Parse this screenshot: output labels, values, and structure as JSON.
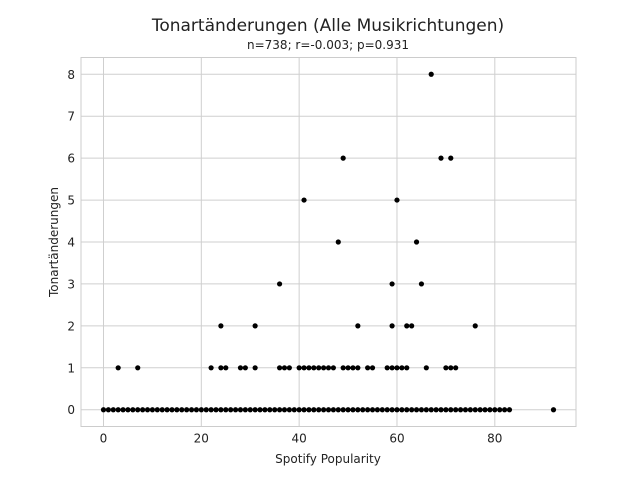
{
  "chart_data": {
    "type": "scatter",
    "title": "Tonartänderungen (Alle Musikrichtungen)",
    "subtitle": "n=738; r=-0.003; p=0.931",
    "xlabel": "Spotify Popularity",
    "ylabel": "Tonartänderungen",
    "xlim": [
      -4.6,
      96.6
    ],
    "ylim": [
      -0.4,
      8.4
    ],
    "xticks": [
      0,
      20,
      40,
      60,
      80
    ],
    "yticks": [
      0,
      1,
      2,
      3,
      4,
      5,
      6,
      7,
      8
    ],
    "grid": true,
    "marker_color": "#000000",
    "points": [
      {
        "x": 3,
        "y": 1
      },
      {
        "x": 7,
        "y": 1
      },
      {
        "x": 22,
        "y": 1
      },
      {
        "x": 24,
        "y": 1
      },
      {
        "x": 25,
        "y": 1
      },
      {
        "x": 28,
        "y": 1
      },
      {
        "x": 29,
        "y": 1
      },
      {
        "x": 31,
        "y": 1
      },
      {
        "x": 36,
        "y": 1
      },
      {
        "x": 37,
        "y": 1
      },
      {
        "x": 38,
        "y": 1
      },
      {
        "x": 40,
        "y": 1
      },
      {
        "x": 41,
        "y": 1
      },
      {
        "x": 42,
        "y": 1
      },
      {
        "x": 43,
        "y": 1
      },
      {
        "x": 44,
        "y": 1
      },
      {
        "x": 45,
        "y": 1
      },
      {
        "x": 46,
        "y": 1
      },
      {
        "x": 47,
        "y": 1
      },
      {
        "x": 49,
        "y": 1
      },
      {
        "x": 50,
        "y": 1
      },
      {
        "x": 51,
        "y": 1
      },
      {
        "x": 52,
        "y": 1
      },
      {
        "x": 54,
        "y": 1
      },
      {
        "x": 55,
        "y": 1
      },
      {
        "x": 58,
        "y": 1
      },
      {
        "x": 59,
        "y": 1
      },
      {
        "x": 60,
        "y": 1
      },
      {
        "x": 61,
        "y": 1
      },
      {
        "x": 62,
        "y": 1
      },
      {
        "x": 66,
        "y": 1
      },
      {
        "x": 70,
        "y": 1
      },
      {
        "x": 71,
        "y": 1
      },
      {
        "x": 72,
        "y": 1
      },
      {
        "x": 24,
        "y": 2
      },
      {
        "x": 31,
        "y": 2
      },
      {
        "x": 52,
        "y": 2
      },
      {
        "x": 59,
        "y": 2
      },
      {
        "x": 62,
        "y": 2
      },
      {
        "x": 63,
        "y": 2
      },
      {
        "x": 76,
        "y": 2
      },
      {
        "x": 36,
        "y": 3
      },
      {
        "x": 59,
        "y": 3
      },
      {
        "x": 65,
        "y": 3
      },
      {
        "x": 48,
        "y": 4
      },
      {
        "x": 64,
        "y": 4
      },
      {
        "x": 41,
        "y": 5
      },
      {
        "x": 60,
        "y": 5
      },
      {
        "x": 49,
        "y": 6
      },
      {
        "x": 69,
        "y": 6
      },
      {
        "x": 71,
        "y": 6
      },
      {
        "x": 67,
        "y": 8
      },
      {
        "x": 92,
        "y": 0
      }
    ],
    "zero_series_range": [
      0,
      83
    ]
  }
}
